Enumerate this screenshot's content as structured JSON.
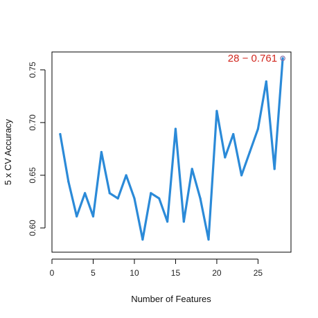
{
  "chart_data": {
    "type": "line",
    "title": "",
    "xlabel": "Number of Features",
    "ylabel": "5 x CV Accuracy",
    "x": [
      1,
      2,
      3,
      4,
      5,
      6,
      7,
      8,
      9,
      10,
      11,
      12,
      13,
      14,
      15,
      16,
      17,
      18,
      19,
      20,
      21,
      22,
      23,
      24,
      25,
      26,
      27,
      28
    ],
    "series": [
      {
        "values": [
          0.689,
          0.644,
          0.611,
          0.633,
          0.611,
          0.672,
          0.633,
          0.628,
          0.65,
          0.628,
          0.589,
          0.633,
          0.628,
          0.606,
          0.694,
          0.606,
          0.656,
          0.628,
          0.589,
          0.711,
          0.667,
          0.689,
          0.65,
          0.672,
          0.694,
          0.739,
          0.656,
          0.761
        ],
        "color": "#2b8ad8"
      }
    ],
    "xlim": [
      0,
      29
    ],
    "ylim": [
      0.577,
      0.767
    ],
    "xticks": [
      "0",
      "5",
      "10",
      "15",
      "20",
      "25"
    ],
    "yticks": [
      "0.60",
      "0.65",
      "0.70",
      "0.75"
    ],
    "grid": false,
    "annotation": {
      "x": 28,
      "y": 0.761,
      "label": "28 − 0.761",
      "color": "#d1271f",
      "marker_color": "#8b6fa8"
    }
  }
}
